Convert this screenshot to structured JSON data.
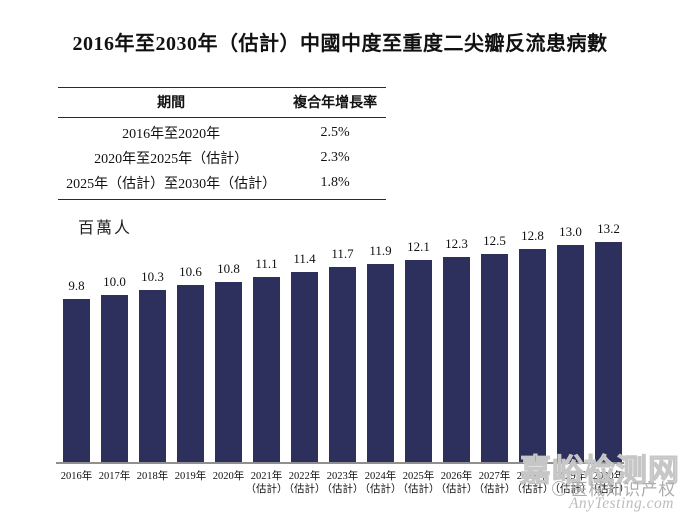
{
  "title": "2016年至2030年（估計）中國中度至重度二尖瓣反流患病數",
  "cagr_table": {
    "headers": [
      "期間",
      "複合年增長率"
    ],
    "rows": [
      [
        "2016年至2020年",
        "2.5%"
      ],
      [
        "2020年至2025年（估計）",
        "2.3%"
      ],
      [
        "2025年（估計）至2030年（估計）",
        "1.8%"
      ]
    ]
  },
  "chart_data": {
    "type": "bar",
    "title": "2016年至2030年（估計）中國中度至重度二尖瓣反流患病數",
    "ylabel": "百萬人",
    "xlabel": "",
    "categories": [
      "2016年",
      "2017年",
      "2018年",
      "2019年",
      "2020年",
      "2021年",
      "2022年",
      "2023年",
      "2024年",
      "2025年",
      "2026年",
      "2027年",
      "2028年",
      "2029年",
      "2030年"
    ],
    "category_notes": [
      "",
      "",
      "",
      "",
      "",
      "（估計）",
      "（估計）",
      "（估計）",
      "（估計）",
      "（估計）",
      "（估計）",
      "（估計）",
      "（估計）",
      "（估計）",
      "（估計）"
    ],
    "values": [
      9.8,
      10.0,
      10.3,
      10.6,
      10.8,
      11.1,
      11.4,
      11.7,
      11.9,
      12.1,
      12.3,
      12.5,
      12.8,
      13.0,
      13.2
    ],
    "value_labels": [
      "9.8",
      "10.0",
      "10.3",
      "10.6",
      "10.8",
      "11.1",
      "11.4",
      "11.7",
      "11.9",
      "12.1",
      "12.3",
      "12.5",
      "12.8",
      "13.0",
      "13.2"
    ],
    "ylim": [
      0,
      13.2
    ],
    "grid": false,
    "legend": "none",
    "bar_color": "#2d2f5c",
    "axis_color": "#8f8f8f"
  },
  "watermark": {
    "ghost_text": "嘉峪检测网",
    "line1": "医械知识产权",
    "line2": "AnyTesting.com"
  }
}
